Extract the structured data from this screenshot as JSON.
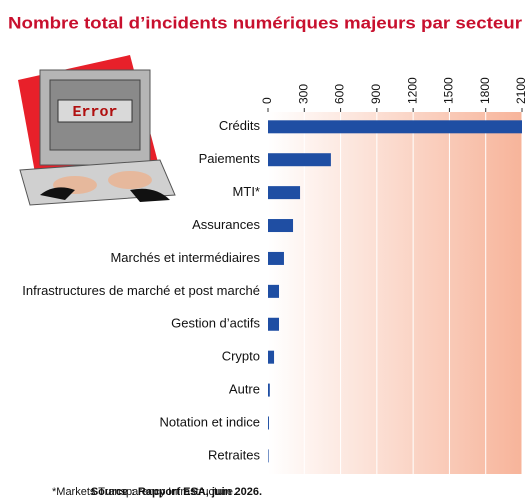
{
  "chart_data": {
    "type": "bar",
    "orientation": "horizontal",
    "title": "Nombre total d’incidents numériques majeurs par secteur",
    "categories": [
      "Crédits",
      "Paiements",
      "MTI*",
      "Assurances",
      "Marchés et intermédiaires",
      "Infrastructures de marché et post marché",
      "Gestion d’actifs",
      "Crypto",
      "Autre",
      "Notation et indice",
      "Retraites"
    ],
    "values": [
      2100,
      520,
      265,
      207,
      132,
      91,
      91,
      50,
      15,
      8,
      5
    ],
    "color": "#1f4ea3",
    "xlim": [
      0,
      2100
    ],
    "xticks": [
      0,
      300,
      600,
      900,
      1200,
      1500,
      1800,
      2100
    ],
    "grid": true,
    "annotation": "Error",
    "footnote": "*Markets Transparency Infrastructure.",
    "source": "Source : Rapport ESA, juin 2026."
  }
}
